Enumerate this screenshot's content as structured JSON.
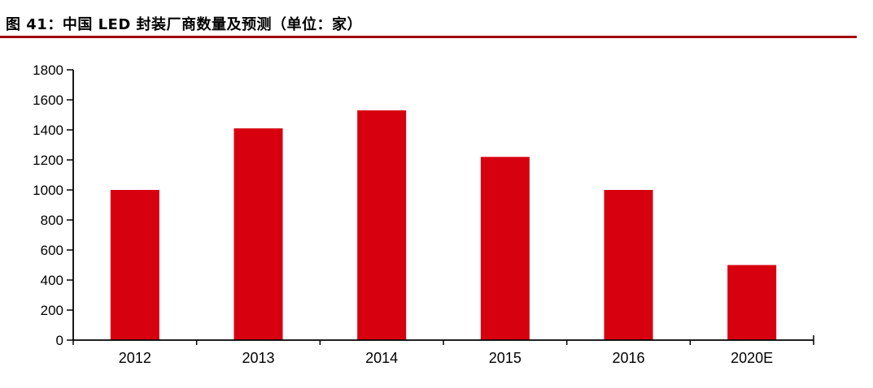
{
  "header": {
    "title": "图 41：中国 LED 封装厂商数量及预测（单位：家）",
    "underline_color": "#A00000"
  },
  "chart_data": {
    "type": "bar",
    "title": "中国 LED 封装厂商数量及预测",
    "unit": "家",
    "categories": [
      "2012",
      "2013",
      "2014",
      "2015",
      "2016",
      "2020E"
    ],
    "values": [
      1000,
      1410,
      1530,
      1220,
      1000,
      500
    ],
    "series_name": "LED封装厂商数量",
    "xlabel": "",
    "ylabel": "",
    "ylim": [
      0,
      1800
    ],
    "ytick_step": 200,
    "yticks": [
      0,
      200,
      400,
      600,
      800,
      1000,
      1200,
      1400,
      1600,
      1800
    ],
    "grid": false,
    "legend": "none",
    "bar_color": "#D6000F",
    "axis_color": "#000000",
    "label_color": "#000000"
  }
}
